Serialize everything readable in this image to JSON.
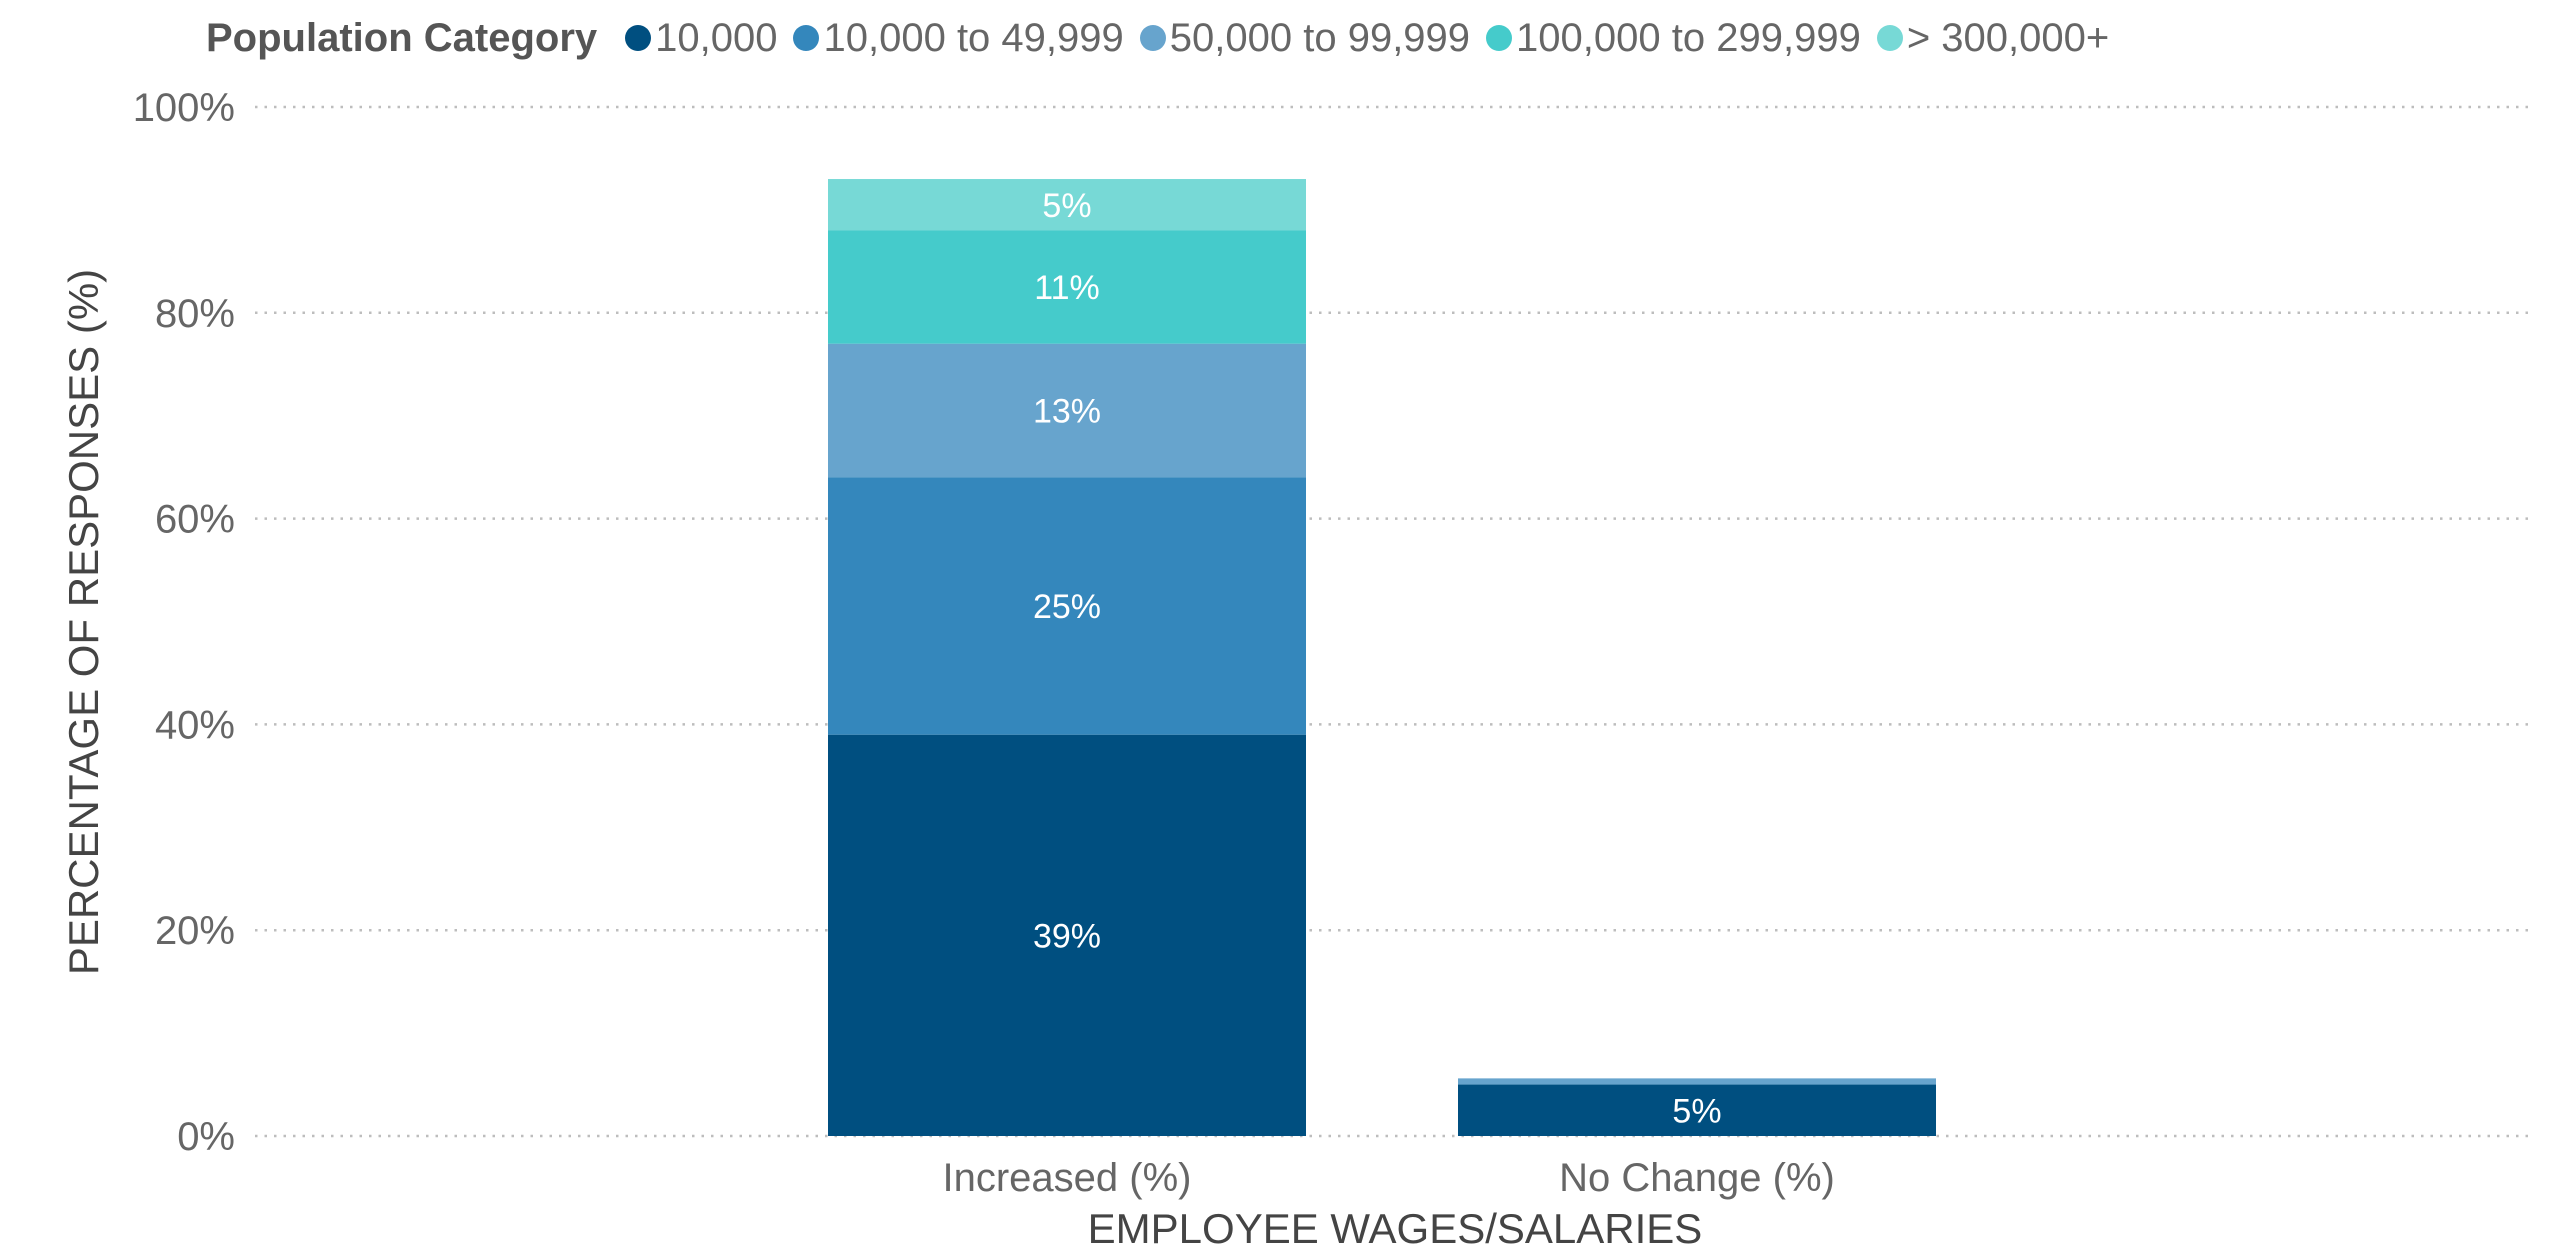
{
  "chart_data": {
    "type": "bar",
    "stacked": true,
    "legend_title": "Population Category",
    "legend_position": "top",
    "xlabel": "EMPLOYEE WAGES/SALARIES",
    "ylabel": "PERCENTAGE OF RESPONSES (%)",
    "ylim": [
      0,
      100
    ],
    "yticks": [
      0,
      20,
      40,
      60,
      80,
      100
    ],
    "ytick_labels": [
      "0%",
      "20%",
      "40%",
      "60%",
      "80%",
      "100%"
    ],
    "grid": "horizontal dotted",
    "categories": [
      "Increased (%)",
      "No Change (%)"
    ],
    "series": [
      {
        "name": "10,000",
        "color": "#004f80",
        "values": [
          39,
          5
        ],
        "labels": [
          "39%",
          "5%"
        ]
      },
      {
        "name": "10,000 to 49,999",
        "color": "#3487bc",
        "values": [
          25,
          0
        ],
        "labels": [
          "25%",
          ""
        ]
      },
      {
        "name": "50,000 to 99,999",
        "color": "#67a4cd",
        "values": [
          13,
          0.6
        ],
        "labels": [
          "13%",
          ""
        ]
      },
      {
        "name": "100,000 to 299,999",
        "color": "#45cbcb",
        "values": [
          11,
          0
        ],
        "labels": [
          "11%",
          ""
        ]
      },
      {
        "name": "> 300,000+",
        "color": "#77d9d6",
        "values": [
          5,
          0
        ],
        "labels": [
          "5%",
          ""
        ]
      }
    ]
  }
}
